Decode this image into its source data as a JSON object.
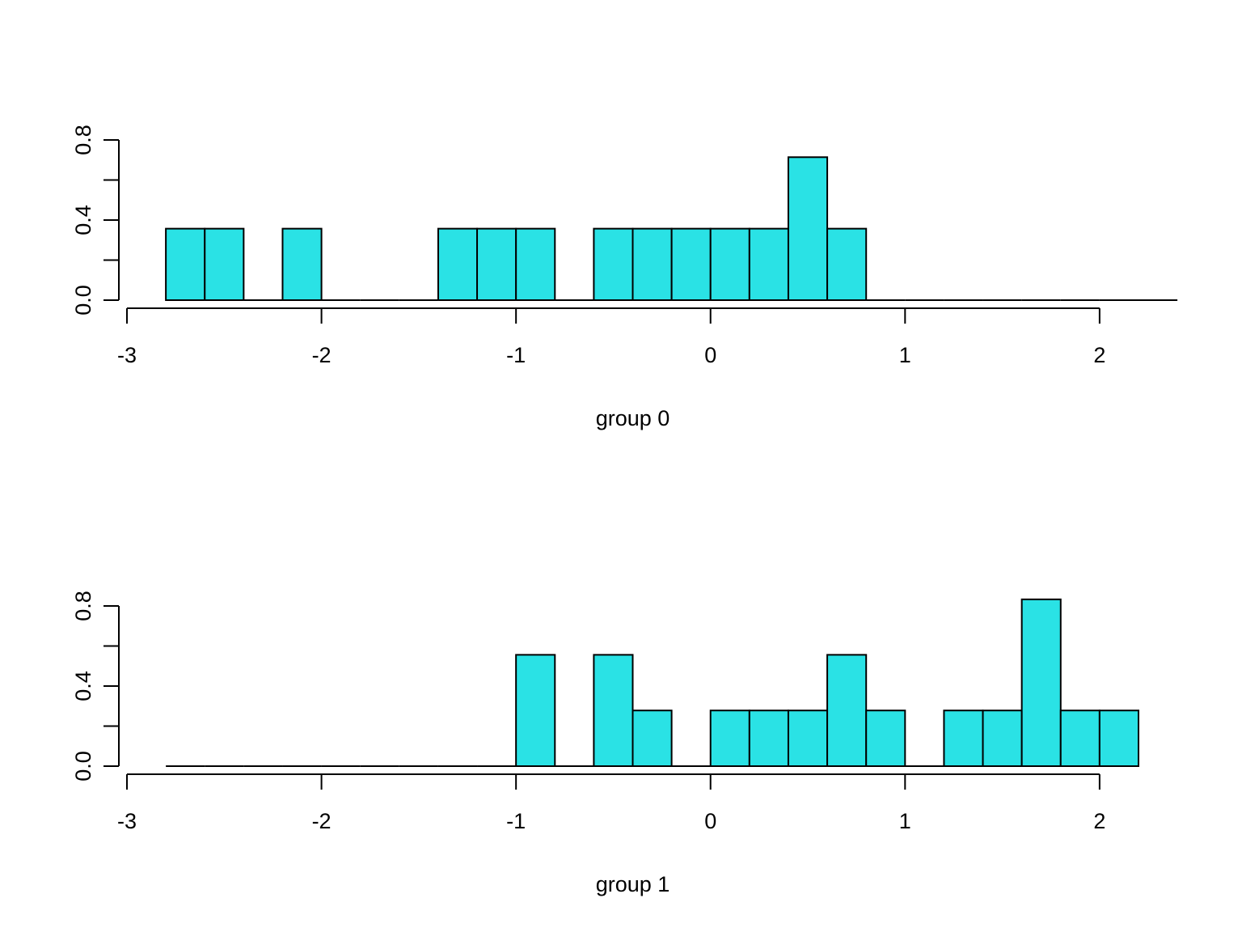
{
  "colors": {
    "bar_fill": "#2ae2e5",
    "bar_stroke": "#000000",
    "axis": "#000000"
  },
  "chart_data": [
    {
      "type": "bar",
      "histogram": true,
      "xlabel": "group 0",
      "ylabel": "",
      "title": "",
      "xlim": [
        -3,
        2.2
      ],
      "ylim": [
        0,
        0.8
      ],
      "x_ticks": [
        -3,
        -2,
        -1,
        0,
        1,
        2
      ],
      "y_ticks": [
        0.0,
        0.4,
        0.8
      ],
      "x_tick_labels": [
        "-3",
        "-2",
        "-1",
        "0",
        "1",
        "2"
      ],
      "y_tick_labels": [
        "0.0",
        "0.4",
        "0.8"
      ],
      "y_minor_ticks": [
        0.2,
        0.6
      ],
      "bin_width": 0.2,
      "bins_start": -2.8,
      "values": [
        0.357,
        0.357,
        0,
        0.357,
        0,
        0,
        0,
        0.357,
        0.357,
        0.357,
        0,
        0.357,
        0.357,
        0.357,
        0.357,
        0.357,
        0.714,
        0.357,
        0,
        0,
        0,
        0,
        0,
        0,
        0,
        0
      ]
    },
    {
      "type": "bar",
      "histogram": true,
      "xlabel": "group 1",
      "ylabel": "",
      "title": "",
      "xlim": [
        -3,
        2.2
      ],
      "ylim": [
        0,
        0.8
      ],
      "x_ticks": [
        -3,
        -2,
        -1,
        0,
        1,
        2
      ],
      "y_ticks": [
        0.0,
        0.4,
        0.8
      ],
      "x_tick_labels": [
        "-3",
        "-2",
        "-1",
        "0",
        "1",
        "2"
      ],
      "y_tick_labels": [
        "0.0",
        "0.4",
        "0.8"
      ],
      "y_minor_ticks": [
        0.2,
        0.6
      ],
      "bin_width": 0.2,
      "bins_start": -2.8,
      "values": [
        0,
        0,
        0,
        0,
        0,
        0,
        0,
        0,
        0,
        0.556,
        0,
        0.556,
        0.278,
        0,
        0.278,
        0.278,
        0.278,
        0.556,
        0.278,
        0,
        0.278,
        0.278,
        0.833,
        0.278,
        0.278
      ]
    }
  ]
}
